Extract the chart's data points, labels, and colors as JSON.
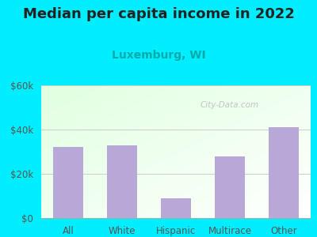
{
  "title": "Median per capita income in 2022",
  "subtitle": "Luxemburg, WI",
  "categories": [
    "All",
    "White",
    "Hispanic",
    "Multirace",
    "Other"
  ],
  "values": [
    32000,
    33000,
    9000,
    28000,
    41000
  ],
  "bar_color": "#b8a8d8",
  "title_fontsize": 13,
  "subtitle_fontsize": 10,
  "subtitle_color": "#00aaaa",
  "title_color": "#222222",
  "background_outer": "#00eeff",
  "ylim": [
    0,
    60000
  ],
  "yticks": [
    0,
    20000,
    40000,
    60000
  ],
  "ytick_labels": [
    "$0",
    "$20k",
    "$40k",
    "$60k"
  ],
  "watermark": "City-Data.com",
  "tick_color": "#555555"
}
